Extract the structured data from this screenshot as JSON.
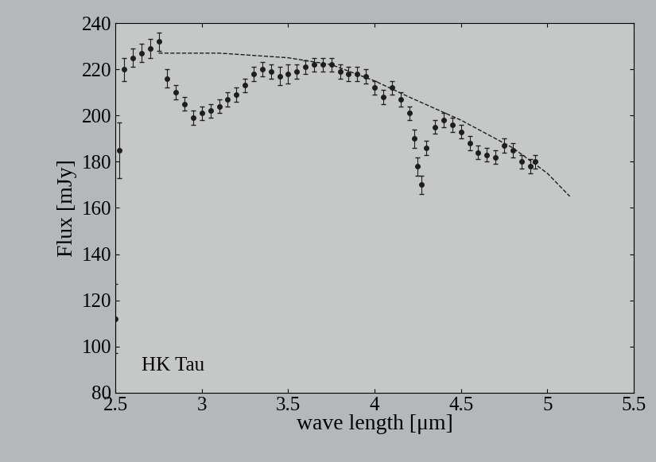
{
  "chart_data": {
    "type": "scatter",
    "xlabel": "wave length [μm]",
    "ylabel": "Flux [mJy]",
    "annotation": "HK Tau",
    "xlim": [
      2.5,
      5.5
    ],
    "xticks": [
      2.5,
      3,
      3.5,
      4,
      4.5,
      5,
      5.5
    ],
    "ylim": [
      80,
      240
    ],
    "yticks": [
      80,
      100,
      120,
      140,
      160,
      180,
      200,
      220,
      240
    ],
    "grid": false,
    "series": [
      {
        "type": "scatter",
        "color": "#1e1e1e",
        "marker": "o",
        "x": [
          2.5,
          2.52,
          2.55,
          2.6,
          2.65,
          2.7,
          2.75,
          2.8,
          2.85,
          2.9,
          2.95,
          3.0,
          3.05,
          3.1,
          3.15,
          3.2,
          3.25,
          3.3,
          3.35,
          3.4,
          3.45,
          3.5,
          3.55,
          3.6,
          3.65,
          3.7,
          3.75,
          3.8,
          3.85,
          3.9,
          3.95,
          4.0,
          4.05,
          4.1,
          4.15,
          4.2,
          4.23,
          4.25,
          4.27,
          4.3,
          4.35,
          4.4,
          4.45,
          4.5,
          4.55,
          4.6,
          4.65,
          4.7,
          4.75,
          4.8,
          4.85,
          4.9,
          4.93
        ],
        "values": [
          112,
          185,
          220,
          225,
          227,
          229,
          232,
          216,
          210,
          205,
          199,
          201,
          202,
          204,
          207,
          209,
          213,
          218,
          220,
          219,
          217,
          218,
          219,
          221,
          222,
          222,
          222,
          219,
          218,
          218,
          217,
          212,
          208,
          212,
          207,
          201,
          190,
          178,
          170,
          186,
          195,
          198,
          196,
          193,
          188,
          184,
          183,
          182,
          187,
          185,
          180,
          178,
          180
        ],
        "errors": [
          15,
          12,
          5,
          4,
          4,
          4,
          4,
          4,
          3,
          3,
          3,
          3,
          3,
          3,
          3,
          3,
          3,
          3,
          3,
          3,
          4,
          4,
          3,
          3,
          3,
          3,
          3,
          3,
          3,
          3,
          3,
          3,
          3,
          3,
          3,
          3,
          4,
          4,
          4,
          3,
          3,
          3,
          3,
          3,
          3,
          3,
          3,
          3,
          3,
          3,
          3,
          3,
          3
        ]
      },
      {
        "type": "line",
        "color": "#1e1e1e",
        "line_style": "dashed",
        "x": [
          2.75,
          2.9,
          3.1,
          3.3,
          3.5,
          3.75,
          4.0,
          4.2,
          4.5,
          4.8,
          5.0,
          5.13
        ],
        "values": [
          227,
          227,
          227,
          226,
          225,
          222,
          215,
          208,
          198,
          186,
          175,
          165
        ]
      }
    ]
  }
}
